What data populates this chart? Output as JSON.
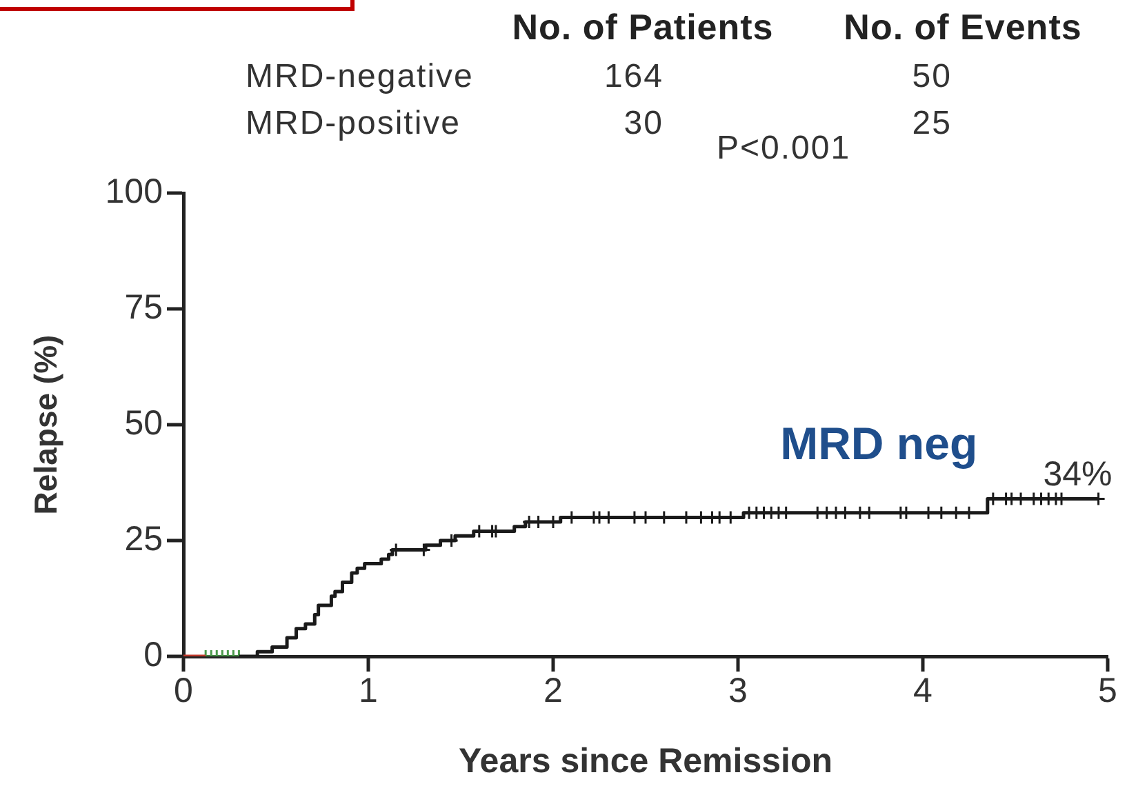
{
  "chart_data": {
    "type": "step",
    "xlabel": "Years since Remission",
    "ylabel": "Relapse (%)",
    "annotations": [
      "No. of Patients",
      "No. of Events",
      "MRD-negative",
      "164",
      "50",
      "MRD-positive",
      "30",
      "25",
      "P<0.001",
      {
        "text": "34%",
        "x": 4.95,
        "y": 34
      }
    ],
    "xlim": [
      0,
      5
    ],
    "xticks": [
      0,
      1,
      2,
      3,
      4,
      5
    ],
    "ylim": [
      0,
      100
    ],
    "yticks": [
      0,
      25,
      50,
      75,
      100
    ],
    "series": [
      {
        "name": "MRD neg",
        "color": "#1a1a1a",
        "marker": "none",
        "x": [
          0.3,
          0.4,
          0.48,
          0.56,
          0.61,
          0.66,
          0.71,
          0.73,
          0.8,
          0.82,
          0.86,
          0.91,
          0.94,
          0.98,
          1.07,
          1.11,
          1.13,
          1.31,
          1.39,
          1.47,
          1.57,
          1.79,
          1.85,
          2.04,
          3.03,
          4.35,
          4.95
        ],
        "values": [
          0,
          1,
          2,
          4,
          6,
          7,
          9,
          11,
          13,
          14,
          16,
          18,
          19,
          20,
          21,
          22,
          23,
          24,
          25,
          26,
          27,
          28,
          29,
          30,
          31,
          34,
          34
        ]
      },
      {
        "type": "scatter",
        "color": "#1a1a1a",
        "marker": "cross",
        "x": [
          1.15,
          1.3,
          1.45,
          1.6,
          1.67,
          1.69,
          1.87,
          1.92,
          2.0,
          2.1,
          2.22,
          2.25,
          2.3,
          2.44,
          2.5,
          2.6,
          2.72,
          2.8,
          2.86,
          2.9,
          2.96,
          3.06,
          3.1,
          3.14,
          3.18,
          3.22,
          3.26,
          3.43,
          3.48,
          3.53,
          3.58,
          3.66,
          3.71,
          3.88,
          3.91,
          4.03,
          4.1,
          4.18,
          4.25,
          4.38,
          4.45,
          4.48,
          4.53,
          4.6,
          4.64,
          4.68,
          4.72,
          4.75,
          4.95
        ],
        "values": [
          23,
          23,
          25,
          27,
          27,
          27,
          29,
          29,
          29,
          30,
          30,
          30,
          30,
          30,
          30,
          30,
          30,
          30,
          30,
          30,
          30,
          31,
          31,
          31,
          31,
          31,
          31,
          31,
          31,
          31,
          31,
          31,
          31,
          31,
          31,
          31,
          31,
          31,
          31,
          34,
          34,
          34,
          34,
          34,
          34,
          34,
          34,
          34,
          34
        ]
      },
      {
        "type": "line",
        "color": "#c0392b",
        "marker": "none",
        "x": [
          0,
          0.12
        ],
        "values": [
          0,
          0
        ]
      },
      {
        "type": "scatter",
        "color": "#4a9a4a",
        "marker": "cross",
        "x": [
          0.12,
          0.15,
          0.18,
          0.21,
          0.24,
          0.27,
          0.3
        ],
        "values": [
          0,
          0,
          0,
          0,
          0,
          0,
          0
        ]
      }
    ]
  }
}
